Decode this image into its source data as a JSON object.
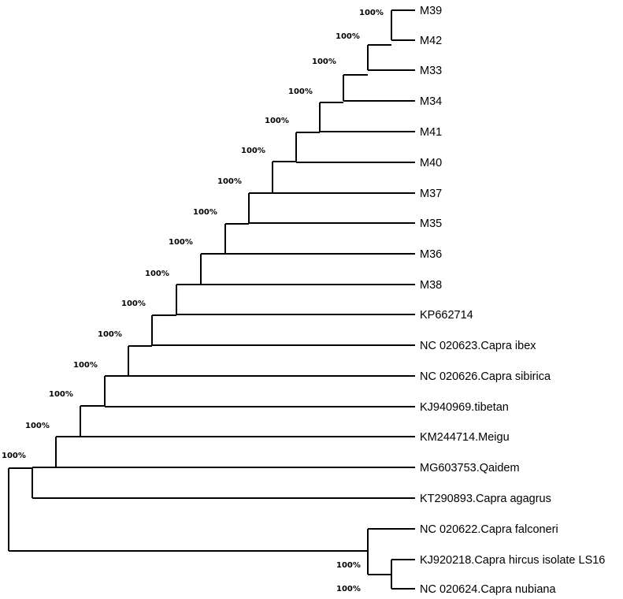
{
  "figure": {
    "type": "phylogenetic-tree",
    "line_color": "#000000",
    "background": "#ffffff"
  },
  "leaves": [
    "M39",
    "M42",
    "M33",
    "M34",
    "M41",
    "M40",
    "M37",
    "M35",
    "M36",
    "M38",
    "KP662714",
    "NC 020623.Capra ibex",
    "NC 020626.Capra sibirica",
    "KJ940969.tibetan",
    "KM244714.Meigu",
    "MG603753.Qaidem",
    "KT290893.Capra agagrus",
    "NC 020622.Capra falconeri",
    "KJ920218.Capra hircus isolate LS16",
    "NC 020624.Capra nubiana"
  ],
  "support_values": {
    "clade_m39_m42": "100%",
    "clade_m33": "100%",
    "clade_m34": "100%",
    "clade_m41": "100%",
    "clade_m40": "100%",
    "clade_m37": "100%",
    "clade_m35": "100%",
    "clade_m36": "100%",
    "clade_m38": "100%",
    "clade_kp662714": "100%",
    "clade_capra_ibex": "100%",
    "clade_capra_sibirica": "100%",
    "clade_tibetan": "100%",
    "clade_meigu": "100%",
    "clade_qaidem": "100%",
    "clade_ingroup": "100%",
    "clade_hircus_nubiana": "100%",
    "clade_outgroup": "100%"
  }
}
